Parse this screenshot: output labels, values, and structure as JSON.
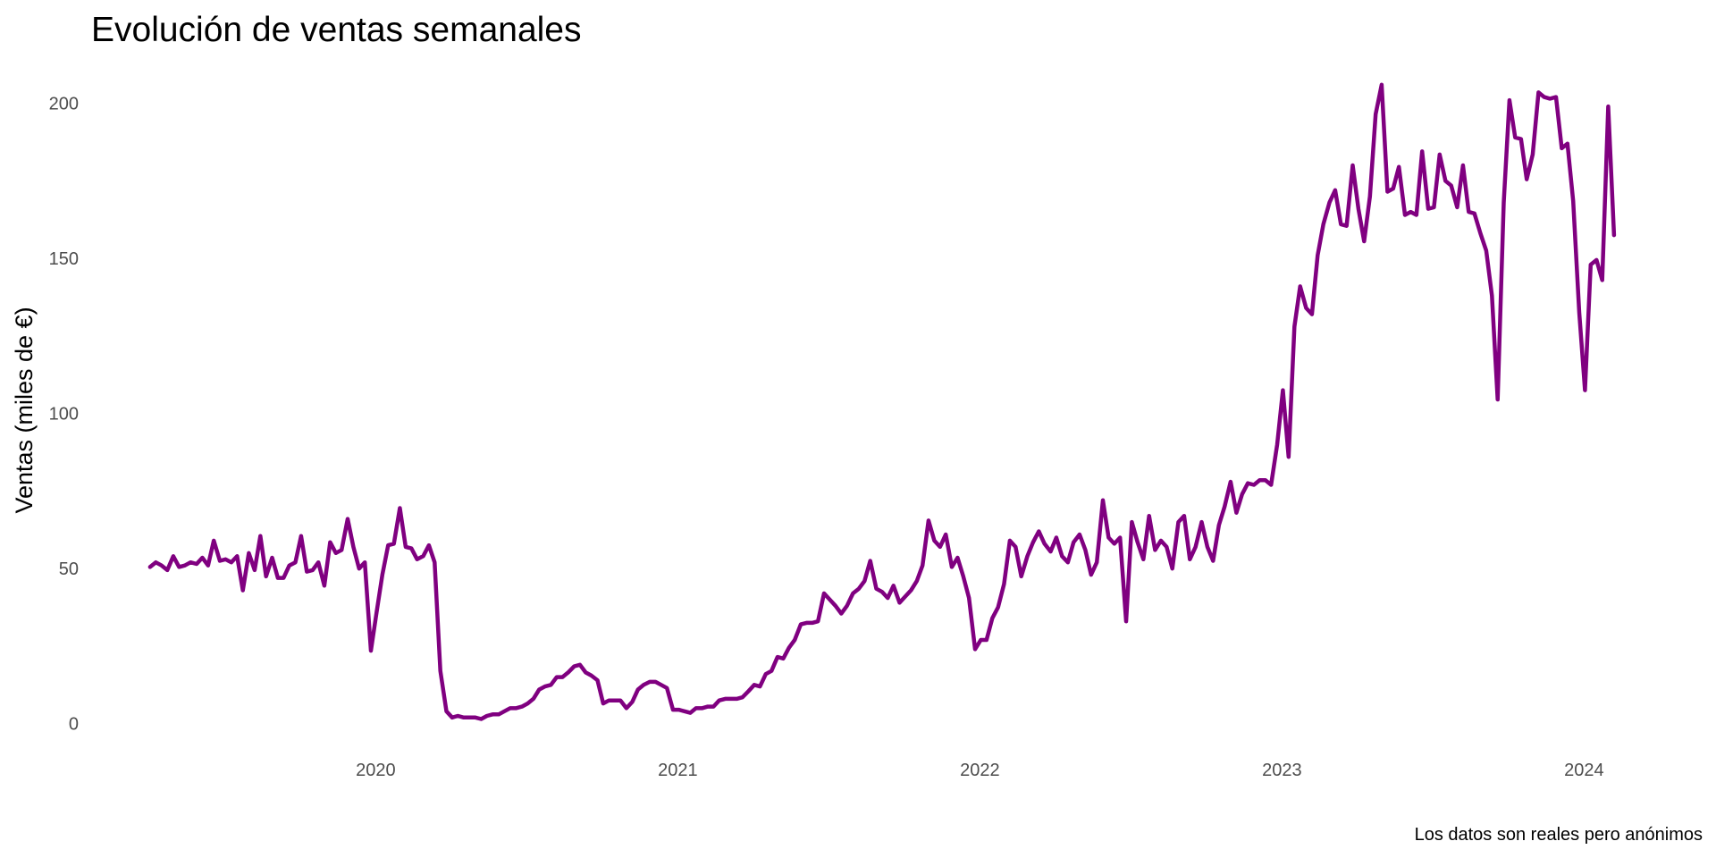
{
  "chart_data": {
    "type": "line",
    "title": "Evolución de ventas semanales",
    "xlabel": "",
    "ylabel": "Ventas (miles de €)",
    "caption": "Los datos son reales pero anónimos",
    "x_ticks": [
      {
        "label": "2020",
        "year": 2020.0
      },
      {
        "label": "2021",
        "year": 2021.0
      },
      {
        "label": "2022",
        "year": 2022.0
      },
      {
        "label": "2023",
        "year": 2023.0
      },
      {
        "label": "2024",
        "year": 2024.0
      }
    ],
    "y_ticks": [
      0,
      50,
      100,
      150,
      200
    ],
    "xlim": [
      2019.2,
      2024.2
    ],
    "ylim": [
      -7,
      214
    ],
    "grid": false,
    "legend": "none",
    "colors": {
      "line": "#800080"
    },
    "series": [
      {
        "x": [
          2019.253,
          2019.272,
          2019.291,
          2019.31,
          2019.33,
          2019.349,
          2019.368,
          2019.387,
          2019.407,
          2019.426,
          2019.445,
          2019.464,
          2019.484,
          2019.503,
          2019.522,
          2019.541,
          2019.56,
          2019.58,
          2019.599,
          2019.618,
          2019.637,
          2019.657,
          2019.676,
          2019.695,
          2019.714,
          2019.734,
          2019.753,
          2019.772,
          2019.791,
          2019.81,
          2019.83,
          2019.849,
          2019.868,
          2019.887,
          2019.907,
          2019.926,
          2019.945,
          2019.964,
          2019.984,
          2020.003,
          2020.022,
          2020.041,
          2020.06,
          2020.08,
          2020.099,
          2020.118,
          2020.137,
          2020.157,
          2020.176,
          2020.195,
          2020.214,
          2020.234,
          2020.253,
          2020.272,
          2020.291,
          2020.31,
          2020.33,
          2020.349,
          2020.368,
          2020.387,
          2020.407,
          2020.426,
          2020.445,
          2020.464,
          2020.484,
          2020.503,
          2020.522,
          2020.541,
          2020.56,
          2020.58,
          2020.599,
          2020.618,
          2020.637,
          2020.657,
          2020.676,
          2020.695,
          2020.714,
          2020.734,
          2020.753,
          2020.772,
          2020.791,
          2020.81,
          2020.83,
          2020.849,
          2020.868,
          2020.887,
          2020.907,
          2020.926,
          2020.945,
          2020.964,
          2020.984,
          2021.003,
          2021.022,
          2021.041,
          2021.06,
          2021.08,
          2021.099,
          2021.118,
          2021.137,
          2021.157,
          2021.176,
          2021.195,
          2021.214,
          2021.234,
          2021.253,
          2021.272,
          2021.291,
          2021.31,
          2021.33,
          2021.349,
          2021.368,
          2021.387,
          2021.407,
          2021.426,
          2021.445,
          2021.464,
          2021.484,
          2021.503,
          2021.522,
          2021.541,
          2021.56,
          2021.58,
          2021.599,
          2021.618,
          2021.637,
          2021.657,
          2021.676,
          2021.695,
          2021.714,
          2021.734,
          2021.753,
          2021.772,
          2021.791,
          2021.81,
          2021.83,
          2021.849,
          2021.868,
          2021.887,
          2021.907,
          2021.926,
          2021.945,
          2021.964,
          2021.984,
          2022.003,
          2022.022,
          2022.041,
          2022.06,
          2022.08,
          2022.099,
          2022.118,
          2022.137,
          2022.157,
          2022.176,
          2022.195,
          2022.214,
          2022.234,
          2022.253,
          2022.272,
          2022.291,
          2022.31,
          2022.33,
          2022.349,
          2022.368,
          2022.387,
          2022.407,
          2022.426,
          2022.445,
          2022.464,
          2022.484,
          2022.503,
          2022.522,
          2022.541,
          2022.56,
          2022.58,
          2022.599,
          2022.618,
          2022.637,
          2022.657,
          2022.676,
          2022.695,
          2022.714,
          2022.734,
          2022.753,
          2022.772,
          2022.791,
          2022.81,
          2022.83,
          2022.849,
          2022.868,
          2022.887,
          2022.907,
          2022.926,
          2022.945,
          2022.964,
          2022.984,
          2023.003,
          2023.022,
          2023.041,
          2023.06,
          2023.08,
          2023.099,
          2023.118,
          2023.137,
          2023.157,
          2023.176,
          2023.195,
          2023.214,
          2023.234,
          2023.253,
          2023.272,
          2023.291,
          2023.31,
          2023.33,
          2023.349,
          2023.368,
          2023.387,
          2023.407,
          2023.426,
          2023.445,
          2023.464,
          2023.484,
          2023.503,
          2023.522,
          2023.541,
          2023.56,
          2023.58,
          2023.599,
          2023.618,
          2023.637,
          2023.657,
          2023.676,
          2023.695,
          2023.714,
          2023.734,
          2023.753,
          2023.772,
          2023.791,
          2023.81,
          2023.83,
          2023.849,
          2023.868,
          2023.887,
          2023.907,
          2023.926,
          2023.945,
          2023.964,
          2023.984,
          2024.003,
          2024.022,
          2024.041,
          2024.06,
          2024.08,
          2024.099
        ],
        "y": [
          50.5,
          52.0,
          51.0,
          49.5,
          54.0,
          50.5,
          51.0,
          52.0,
          51.5,
          53.5,
          51.0,
          59.0,
          52.5,
          53.0,
          52.0,
          54.0,
          43.0,
          55.0,
          49.5,
          60.5,
          47.5,
          53.5,
          47.0,
          47.0,
          51.0,
          52.0,
          60.5,
          49.0,
          49.5,
          52.0,
          44.5,
          58.5,
          55.0,
          56.0,
          66.0,
          57.0,
          50.0,
          52.0,
          23.5,
          36.0,
          48.0,
          57.5,
          58.0,
          69.5,
          57.0,
          56.5,
          53.0,
          54.0,
          57.5,
          52.0,
          17.0,
          4.0,
          2.0,
          2.5,
          2.0,
          2.0,
          2.0,
          1.5,
          2.5,
          3.0,
          3.0,
          4.0,
          5.0,
          5.0,
          5.5,
          6.5,
          8.0,
          11.0,
          12.0,
          12.5,
          15.0,
          15.0,
          16.5,
          18.5,
          19.0,
          16.5,
          15.5,
          14.0,
          6.5,
          7.5,
          7.5,
          7.5,
          5.0,
          7.0,
          11.0,
          12.5,
          13.5,
          13.5,
          12.5,
          11.5,
          4.5,
          4.5,
          4.0,
          3.5,
          5.0,
          5.0,
          5.5,
          5.5,
          7.5,
          8.0,
          8.0,
          8.0,
          8.5,
          10.5,
          12.5,
          12.0,
          16.0,
          17.0,
          21.5,
          21.0,
          24.5,
          27.0,
          32.0,
          32.5,
          32.5,
          33.0,
          42.0,
          40.0,
          38.0,
          35.5,
          38.0,
          42.0,
          43.5,
          46.0,
          52.5,
          43.5,
          42.5,
          40.5,
          44.5,
          39.0,
          41.0,
          43.0,
          46.0,
          51.0,
          65.5,
          59.0,
          57.0,
          61.0,
          50.5,
          53.5,
          47.5,
          40.5,
          24.0,
          27.0,
          27.0,
          34.0,
          37.5,
          45.0,
          59.0,
          57.0,
          47.5,
          54.0,
          58.5,
          62.0,
          58.0,
          55.5,
          60.0,
          54.0,
          52.0,
          58.5,
          61.0,
          56.0,
          48.0,
          52.0,
          72.0,
          60.0,
          58.0,
          60.0,
          33.0,
          65.0,
          58.5,
          53.0,
          67.0,
          56.0,
          59.0,
          57.0,
          50.0,
          65.0,
          67.0,
          53.0,
          57.0,
          65.0,
          57.0,
          52.5,
          64.0,
          70.0,
          78.0,
          68.0,
          74.0,
          77.5,
          77.0,
          78.5,
          78.5,
          77.0,
          90.0,
          107.5,
          86.0,
          128.0,
          141.0,
          134.0,
          132.0,
          151.0,
          161.0,
          168.0,
          172.0,
          161.0,
          160.5,
          180.0,
          166.0,
          155.5,
          170.0,
          196.5,
          206.0,
          171.5,
          172.5,
          179.5,
          164.0,
          165.0,
          164.0,
          184.5,
          166.0,
          166.5,
          183.5,
          175.0,
          173.5,
          166.5,
          180.0,
          165.0,
          164.5,
          158.0,
          152.5,
          138.0,
          104.5,
          168.0,
          201.0,
          189.0,
          188.5,
          175.5,
          183.5,
          203.5,
          202.0,
          201.5,
          202.0,
          185.5,
          187.0,
          168.5,
          132.5,
          107.5,
          148.0,
          149.5,
          143.0,
          199.0,
          157.5
        ]
      }
    ]
  }
}
